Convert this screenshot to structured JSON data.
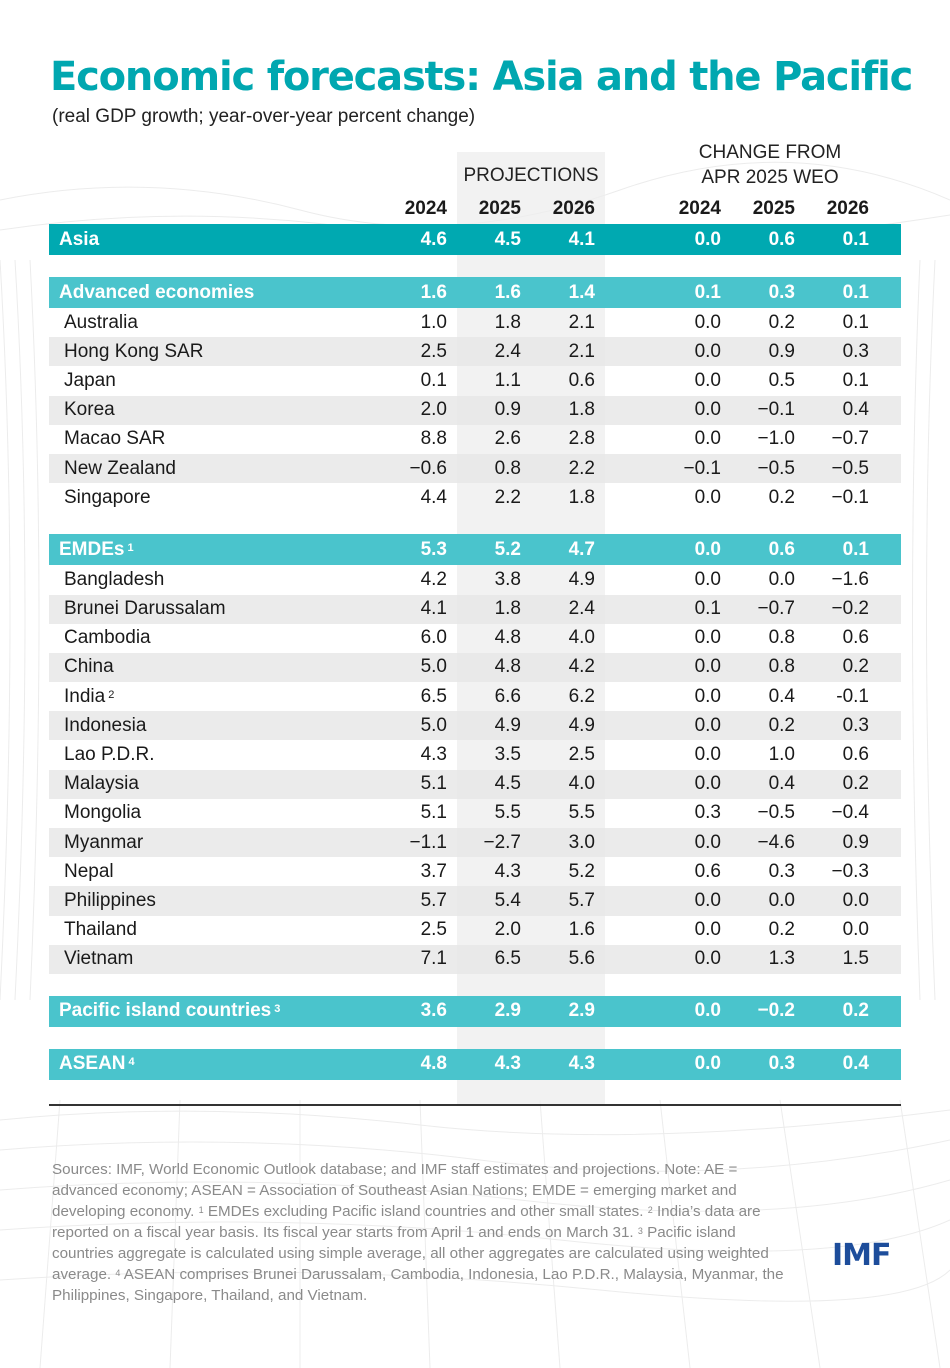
{
  "header": {
    "title": "Economic forecasts: Asia and the Pacific",
    "subtitle": "(real GDP growth; year-over-year percent change)",
    "projections_label": "PROJECTIONS",
    "change_label_line1": "CHANGE FROM",
    "change_label_line2": "APR 2025 WEO",
    "years": [
      "2024",
      "2025",
      "2026",
      "2024",
      "2025",
      "2026"
    ]
  },
  "colors": {
    "title": "#00a7b0",
    "asia_bar": "#00a9b1",
    "group_bar": "#4ac4cc",
    "alt_row": "#e8e8e8",
    "projection_band": "#eeeeee",
    "logo": "#1d4d9b"
  },
  "rows": [
    {
      "type": "agg",
      "top": true,
      "label": "Asia",
      "sup": "",
      "values": [
        "4.6",
        "4.5",
        "4.1",
        "0.0",
        "0.6",
        "0.1"
      ]
    },
    {
      "type": "spacer"
    },
    {
      "type": "agg",
      "label": "Advanced economies",
      "sup": "",
      "values": [
        "1.6",
        "1.6",
        "1.4",
        "0.1",
        "0.3",
        "0.1"
      ]
    },
    {
      "type": "row",
      "label": "Australia",
      "sup": "",
      "values": [
        "1.0",
        "1.8",
        "2.1",
        "0.0",
        "0.2",
        "0.1"
      ]
    },
    {
      "type": "row",
      "label": "Hong Kong SAR",
      "sup": "",
      "values": [
        "2.5",
        "2.4",
        "2.1",
        "0.0",
        "0.9",
        "0.3"
      ]
    },
    {
      "type": "row",
      "label": "Japan",
      "sup": "",
      "values": [
        "0.1",
        "1.1",
        "0.6",
        "0.0",
        "0.5",
        "0.1"
      ]
    },
    {
      "type": "row",
      "label": "Korea",
      "sup": "",
      "values": [
        "2.0",
        "0.9",
        "1.8",
        "0.0",
        "−0.1",
        "0.4"
      ]
    },
    {
      "type": "row",
      "label": "Macao SAR",
      "sup": "",
      "values": [
        "8.8",
        "2.6",
        "2.8",
        "0.0",
        "−1.0",
        "−0.7"
      ]
    },
    {
      "type": "row",
      "label": "New Zealand",
      "sup": "",
      "values": [
        "−0.6",
        "0.8",
        "2.2",
        "−0.1",
        "−0.5",
        "−0.5"
      ]
    },
    {
      "type": "row",
      "label": "Singapore",
      "sup": "",
      "values": [
        "4.4",
        "2.2",
        "1.8",
        "0.0",
        "0.2",
        "−0.1"
      ]
    },
    {
      "type": "spacer"
    },
    {
      "type": "agg",
      "label": "EMDEs",
      "sup": "1",
      "values": [
        "5.3",
        "5.2",
        "4.7",
        "0.0",
        "0.6",
        "0.1"
      ]
    },
    {
      "type": "row",
      "label": "Bangladesh",
      "sup": "",
      "values": [
        "4.2",
        "3.8",
        "4.9",
        "0.0",
        "0.0",
        "−1.6"
      ]
    },
    {
      "type": "row",
      "label": "Brunei Darussalam",
      "sup": "",
      "values": [
        "4.1",
        "1.8",
        "2.4",
        "0.1",
        "−0.7",
        "−0.2"
      ]
    },
    {
      "type": "row",
      "label": "Cambodia",
      "sup": "",
      "values": [
        "6.0",
        "4.8",
        "4.0",
        "0.0",
        "0.8",
        "0.6"
      ]
    },
    {
      "type": "row",
      "label": "China",
      "sup": "",
      "values": [
        "5.0",
        "4.8",
        "4.2",
        "0.0",
        "0.8",
        "0.2"
      ]
    },
    {
      "type": "row",
      "label": "India",
      "sup": "2",
      "values": [
        "6.5",
        "6.6",
        "6.2",
        "0.0",
        "0.4",
        "-0.1"
      ]
    },
    {
      "type": "row",
      "label": "Indonesia",
      "sup": "",
      "values": [
        "5.0",
        "4.9",
        "4.9",
        "0.0",
        "0.2",
        "0.3"
      ]
    },
    {
      "type": "row",
      "label": "Lao P.D.R.",
      "sup": "",
      "values": [
        "4.3",
        "3.5",
        "2.5",
        "0.0",
        "1.0",
        "0.6"
      ]
    },
    {
      "type": "row",
      "label": "Malaysia",
      "sup": "",
      "values": [
        "5.1",
        "4.5",
        "4.0",
        "0.0",
        "0.4",
        "0.2"
      ]
    },
    {
      "type": "row",
      "label": "Mongolia",
      "sup": "",
      "values": [
        "5.1",
        "5.5",
        "5.5",
        "0.3",
        "−0.5",
        "−0.4"
      ]
    },
    {
      "type": "row",
      "label": "Myanmar",
      "sup": "",
      "values": [
        "−1.1",
        "−2.7",
        "3.0",
        "0.0",
        "−4.6",
        "0.9"
      ]
    },
    {
      "type": "row",
      "label": "Nepal",
      "sup": "",
      "values": [
        "3.7",
        "4.3",
        "5.2",
        "0.6",
        "0.3",
        "−0.3"
      ]
    },
    {
      "type": "row",
      "label": "Philippines",
      "sup": "",
      "values": [
        "5.7",
        "5.4",
        "5.7",
        "0.0",
        "0.0",
        "0.0"
      ]
    },
    {
      "type": "row",
      "label": "Thailand",
      "sup": "",
      "values": [
        "2.5",
        "2.0",
        "1.6",
        "0.0",
        "0.2",
        "0.0"
      ]
    },
    {
      "type": "row",
      "label": "Vietnam",
      "sup": "",
      "values": [
        "7.1",
        "6.5",
        "5.6",
        "0.0",
        "1.3",
        "1.5"
      ]
    },
    {
      "type": "spacer"
    },
    {
      "type": "agg",
      "label": "Pacific island countries",
      "sup": "3",
      "values": [
        "3.6",
        "2.9",
        "2.9",
        "0.0",
        "−0.2",
        "0.2"
      ]
    },
    {
      "type": "spacer"
    },
    {
      "type": "agg",
      "label": "ASEAN",
      "sup": "4",
      "values": [
        "4.8",
        "4.3",
        "4.3",
        "0.0",
        "0.3",
        "0.4"
      ]
    }
  ],
  "notes": {
    "sources": "Sources: IMF, World Economic Outlook database; and IMF staff estimates and projections.",
    "note_intro": "Note: AE = advanced economy; ASEAN = Association of Southeast Asian Nations; EMDE = emerging market and developing economy.",
    "fn1": "EMDEs excluding Pacific island countries and other small states.",
    "fn2": "India’s data are reported on a fiscal year basis. Its fiscal year starts from April 1 and ends on March 31.",
    "fn3": "Pacific island countries aggregate is calculated using simple average, all other aggregates are calculated using weighted average.",
    "fn4": "ASEAN comprises Brunei Darussalam, Cambodia, Indonesia, Lao P.D.R., Malaysia, Myanmar, the Philippines, Singapore, Thailand, and Vietnam."
  },
  "logo": {
    "text": "IMF"
  }
}
